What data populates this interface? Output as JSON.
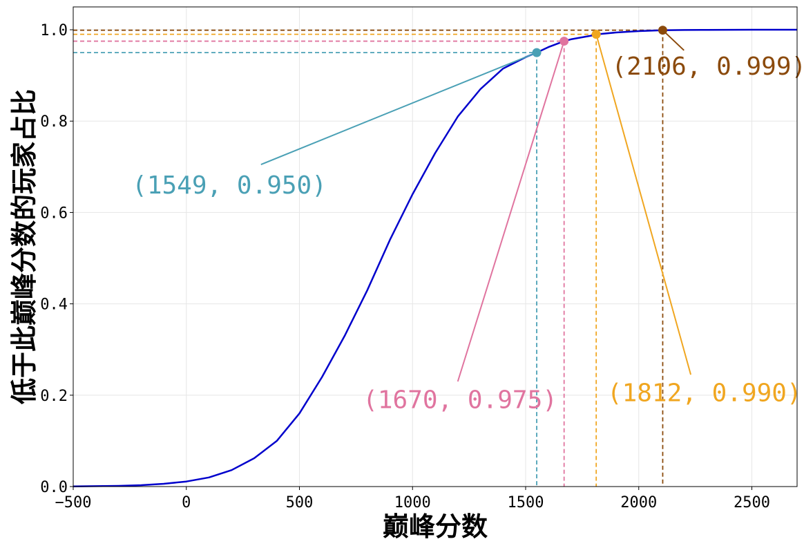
{
  "chart_data": {
    "type": "line",
    "xlabel": "巅峰分数",
    "ylabel": "低于此巅峰分数的玩家占比",
    "xlim": [
      -500,
      2700
    ],
    "ylim": [
      0.0,
      1.05
    ],
    "xticks": [
      -500,
      0,
      500,
      1000,
      1500,
      2000,
      2500
    ],
    "xtick_labels": [
      "−500",
      "0",
      "500",
      "1000",
      "1500",
      "2000",
      "2500"
    ],
    "yticks": [
      0.0,
      0.2,
      0.4,
      0.6,
      0.8,
      1.0
    ],
    "ytick_labels": [
      "0.0",
      "0.2",
      "0.4",
      "0.6",
      "0.8",
      "1.0"
    ],
    "grid": true,
    "series": [
      {
        "color": "#0000cc",
        "x": [
          -500,
          -300,
          -200,
          -100,
          0,
          100,
          200,
          300,
          400,
          500,
          600,
          700,
          800,
          900,
          1000,
          1100,
          1200,
          1300,
          1400,
          1500,
          1549,
          1600,
          1670,
          1700,
          1800,
          1812,
          1900,
          2000,
          2106,
          2200,
          2300,
          2500,
          2700
        ],
        "y": [
          0.0005,
          0.0015,
          0.003,
          0.006,
          0.011,
          0.02,
          0.036,
          0.062,
          0.1,
          0.16,
          0.24,
          0.33,
          0.43,
          0.54,
          0.64,
          0.73,
          0.81,
          0.87,
          0.915,
          0.94,
          0.95,
          0.962,
          0.975,
          0.979,
          0.988,
          0.99,
          0.994,
          0.997,
          0.999,
          0.9995,
          0.9998,
          1.0,
          1.0
        ]
      }
    ],
    "annotations": [
      {
        "x": 1549,
        "y": 0.95,
        "label": "(1549, 0.950)",
        "color": "#4aa0b5",
        "text_x": -240,
        "text_y": 0.66,
        "line_x": 330,
        "line_y": 0.705
      },
      {
        "x": 1670,
        "y": 0.975,
        "label": "(1670, 0.975)",
        "color": "#e0749f",
        "text_x": 780,
        "text_y": 0.19,
        "line_x": 1200,
        "line_y": 0.23
      },
      {
        "x": 1812,
        "y": 0.99,
        "label": "(1812, 0.990)",
        "color": "#f0a620",
        "text_x": 1860,
        "text_y": 0.205,
        "line_x": 2230,
        "line_y": 0.245
      },
      {
        "x": 2106,
        "y": 0.999,
        "label": "(2106, 0.999)",
        "color": "#8b4a0c",
        "text_x": 1880,
        "text_y": 0.92,
        "line_x": 2200,
        "line_y": 0.955
      }
    ]
  }
}
